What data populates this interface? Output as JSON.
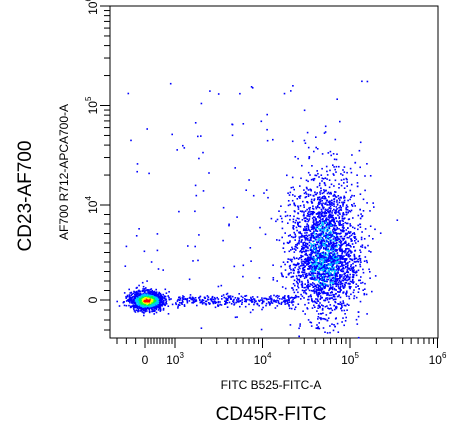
{
  "chart_data": {
    "type": "scatter",
    "title": "",
    "outer_ylabel": "CD23-AF700",
    "ylabel": "AF700 R712-APCA700-A",
    "xlabel": "FITC B525-FITC-A",
    "outer_xlabel": "CD45R-FITC",
    "x_scale": "biexponential",
    "y_scale": "biexponential",
    "xlim": [
      -300,
      1000000
    ],
    "ylim": [
      -300,
      1000000
    ],
    "x_ticks": [
      {
        "value": 0,
        "label": "0",
        "exp": ""
      },
      {
        "value": 1000,
        "label": "10",
        "exp": "3"
      },
      {
        "value": 10000,
        "label": "10",
        "exp": "4"
      },
      {
        "value": 100000,
        "label": "10",
        "exp": "5"
      },
      {
        "value": 1000000,
        "label": "10",
        "exp": "6"
      }
    ],
    "y_ticks": [
      {
        "value": 0,
        "label": "0",
        "exp": ""
      },
      {
        "value": 10000,
        "label": "10",
        "exp": "4"
      },
      {
        "value": 100000,
        "label": "10",
        "exp": "5"
      },
      {
        "value": 1000000,
        "label": "10",
        "exp": "6"
      }
    ],
    "grid": false,
    "legend": "none",
    "density_colors": [
      "#0000ff",
      "#00c8ff",
      "#00ff40",
      "#ffff00",
      "#ff0000"
    ],
    "populations": [
      {
        "name": "",
        "center_x": 50,
        "center_y": 0,
        "count": 1400,
        "density": "high"
      },
      {
        "name": "",
        "center_x": 50000,
        "center_y": 4000,
        "count": 2600,
        "density": "medium"
      }
    ]
  }
}
